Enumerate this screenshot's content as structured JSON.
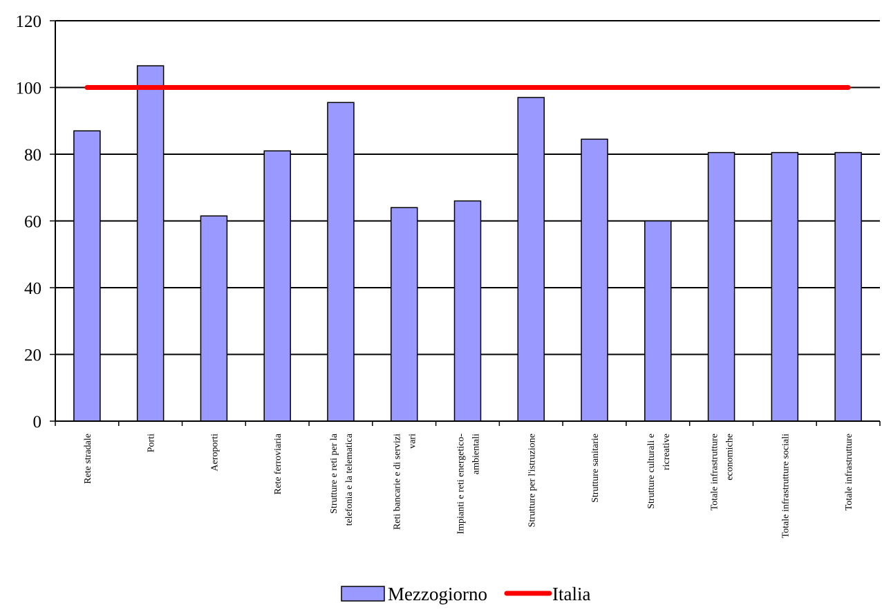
{
  "chart_data": {
    "type": "bar",
    "title": "",
    "xlabel": "",
    "ylabel": "",
    "ylim": [
      0,
      120
    ],
    "yticks": [
      0,
      20,
      40,
      60,
      80,
      100,
      120
    ],
    "grid": true,
    "legend_position": "bottom",
    "categories": [
      [
        "Rete stradale"
      ],
      [
        "Porti"
      ],
      [
        "Aeroporti"
      ],
      [
        "Rete ferroviaria"
      ],
      [
        "Strutture e reti per la",
        "telefonia e la telematica"
      ],
      [
        "Reti bancarie e di servizi",
        "vari"
      ],
      [
        "Impianti e reti energetico-",
        "ambientali"
      ],
      [
        "Strutture per l'istruzione"
      ],
      [
        "Strutture sanitarie"
      ],
      [
        "Strutture culturali e",
        "ricreative"
      ],
      [
        "Totale infrastrutture",
        "economiche"
      ],
      [
        "Totale infrastrutture sociali"
      ],
      [
        "Totale infrastrutture"
      ]
    ],
    "series": [
      {
        "name": "Mezzogiorno",
        "kind": "bar",
        "color": "#9999ff",
        "values": [
          87,
          106.5,
          61.5,
          81,
          95.5,
          64,
          66,
          97,
          84.5,
          60,
          80.5,
          80.5,
          80.5
        ]
      },
      {
        "name": "Italia",
        "kind": "line",
        "color": "#ff0000",
        "values": [
          100,
          100,
          100,
          100,
          100,
          100,
          100,
          100,
          100,
          100,
          100,
          100,
          100
        ]
      }
    ]
  }
}
